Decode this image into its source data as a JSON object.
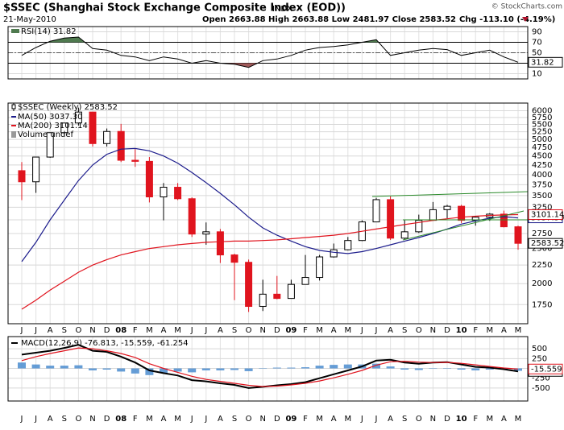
{
  "header": {
    "symbol_title": "$SSEC (Shanghai Stock Exchange Composite Index (EOD))",
    "exchange": "INDX",
    "date": "21-May-2010",
    "quote": "Open 2663.88  High 2663.88  Low 2481.97  Close 2583.52",
    "change": "Chg -113.10 (-4.19%)",
    "source": "© StockCharts.com"
  },
  "chart_data": [
    {
      "type": "rsi",
      "title": "RSI(14) 31.82",
      "ylim": [
        0,
        100
      ],
      "yticks": [
        90,
        70,
        50,
        30,
        10
      ],
      "overbought": 70,
      "oversold": 30,
      "midline": 50,
      "fill_above_color": "#4f7a4f",
      "fill_below_color": "#a05a5a",
      "series": [
        {
          "color": "#000000",
          "last_label": "31.82",
          "values": [
            45,
            60,
            72,
            78,
            80,
            58,
            55,
            45,
            42,
            35,
            42,
            38,
            30,
            35,
            30,
            28,
            22,
            35,
            38,
            45,
            55,
            60,
            62,
            65,
            70,
            75,
            45,
            50,
            55,
            58,
            56,
            45,
            50,
            55,
            42,
            31.82
          ]
        }
      ]
    },
    {
      "type": "candlestick",
      "title": "$SSEC (Weekly) 2583.52",
      "legend_extra": "Volume undef",
      "log_scale": true,
      "grid": true,
      "ylim": [
        1550,
        6300
      ],
      "yticks": [
        1750,
        2000,
        2250,
        2500,
        2750,
        3000,
        3250,
        3500,
        3750,
        4000,
        4250,
        4500,
        4750,
        5000,
        5250,
        5500,
        5750,
        6000
      ],
      "categories": [
        "J",
        "J",
        "A",
        "S",
        "O",
        "N",
        "D",
        "08",
        "F",
        "M",
        "A",
        "M",
        "J",
        "J",
        "A",
        "S",
        "O",
        "N",
        "D",
        "09",
        "F",
        "M",
        "A",
        "M",
        "J",
        "J",
        "A",
        "S",
        "O",
        "N",
        "D",
        "10",
        "F",
        "M",
        "A",
        "M"
      ],
      "open": [
        4100,
        3820,
        4470,
        5220,
        5550,
        5950,
        4870,
        5260,
        4380,
        4350,
        3470,
        3690,
        3430,
        2740,
        2780,
        2400,
        2290,
        1730,
        1870,
        1820,
        1990,
        2080,
        2370,
        2480,
        2630,
        2960,
        3410,
        2670,
        2780,
        2990,
        3200,
        3270,
        2990,
        3050,
        3110,
        2870
      ],
      "high": [
        4330,
        4470,
        5220,
        5560,
        6120,
        5950,
        5360,
        5520,
        4700,
        4470,
        3790,
        3790,
        3460,
        2950,
        2830,
        2420,
        2330,
        2050,
        2100,
        2050,
        2400,
        2400,
        2580,
        2690,
        2990,
        3450,
        3480,
        3000,
        3100,
        3360,
        3300,
        3300,
        3070,
        3130,
        3180,
        2890
      ],
      "low": [
        3400,
        3560,
        4450,
        5130,
        5460,
        4780,
        4780,
        4330,
        4200,
        3350,
        2990,
        3400,
        2690,
        2560,
        2280,
        1800,
        1670,
        1680,
        1810,
        1840,
        1990,
        2040,
        2360,
        2470,
        2620,
        2960,
        2640,
        2640,
        2760,
        2990,
        3030,
        2940,
        2890,
        2980,
        2860,
        2480
      ],
      "close": [
        3820,
        4470,
        5220,
        5550,
        5950,
        4870,
        5260,
        4380,
        4350,
        3470,
        3690,
        3430,
        2740,
        2780,
        2400,
        2290,
        1730,
        1870,
        1820,
        1990,
        2080,
        2370,
        2480,
        2630,
        2960,
        3410,
        2670,
        2780,
        2990,
        3200,
        3270,
        2990,
        3050,
        3110,
        2870,
        2583.52
      ],
      "close_label": "2583.52",
      "up_color": "#000000",
      "down_color": "#e0141e",
      "series": [
        {
          "name": "MA(50) 3037.30",
          "color": "#1c1c8c",
          "last_label": "3037.30",
          "values": [
            2300,
            2600,
            3000,
            3400,
            3850,
            4250,
            4550,
            4700,
            4720,
            4650,
            4500,
            4300,
            4050,
            3800,
            3550,
            3300,
            3050,
            2850,
            2720,
            2620,
            2530,
            2470,
            2440,
            2420,
            2450,
            2500,
            2560,
            2620,
            2680,
            2750,
            2830,
            2920,
            2980,
            3030,
            3060,
            3037.3
          ]
        },
        {
          "name": "MA(200) 3101.14",
          "color": "#e0141e",
          "last_label": "3101.14",
          "values": [
            1700,
            1800,
            1920,
            2030,
            2150,
            2250,
            2330,
            2400,
            2450,
            2500,
            2530,
            2560,
            2580,
            2600,
            2610,
            2620,
            2620,
            2630,
            2640,
            2660,
            2680,
            2700,
            2720,
            2750,
            2790,
            2830,
            2870,
            2910,
            2950,
            2990,
            3020,
            3050,
            3070,
            3085,
            3095,
            3101.14
          ]
        }
      ]
    },
    {
      "type": "macd",
      "title": "MACD(12,26,9) -76.813, -15.559, -61.254",
      "ylim": [
        -830,
        810
      ],
      "yticks": [
        500,
        250,
        0,
        -250,
        -500
      ],
      "series": [
        {
          "color": "#000000",
          "last_label": "-76.813",
          "values": [
            350,
            400,
            450,
            520,
            600,
            450,
            420,
            300,
            150,
            -50,
            -120,
            -180,
            -300,
            -330,
            -380,
            -420,
            -500,
            -470,
            -430,
            -400,
            -350,
            -250,
            -150,
            -50,
            50,
            200,
            220,
            150,
            120,
            150,
            160,
            100,
            40,
            20,
            -20,
            -76.813
          ]
        },
        {
          "color": "#e0141e",
          "last_label": "-15.559",
          "values": [
            200,
            300,
            380,
            450,
            520,
            500,
            450,
            380,
            280,
            120,
            0,
            -100,
            -200,
            -280,
            -330,
            -380,
            -430,
            -460,
            -450,
            -420,
            -380,
            -320,
            -240,
            -150,
            -50,
            80,
            170,
            180,
            160,
            150,
            155,
            130,
            90,
            50,
            10,
            -15.559
          ]
        },
        {
          "color": "#4a8ccf",
          "bars": true,
          "values": [
            150,
            100,
            70,
            70,
            80,
            -50,
            -30,
            -80,
            -130,
            -170,
            -120,
            -80,
            -100,
            -50,
            -50,
            -40,
            -70,
            -10,
            20,
            20,
            30,
            70,
            90,
            100,
            100,
            120,
            50,
            -30,
            -40,
            0,
            5,
            -30,
            -50,
            -30,
            -30,
            -61.254
          ]
        }
      ]
    }
  ]
}
